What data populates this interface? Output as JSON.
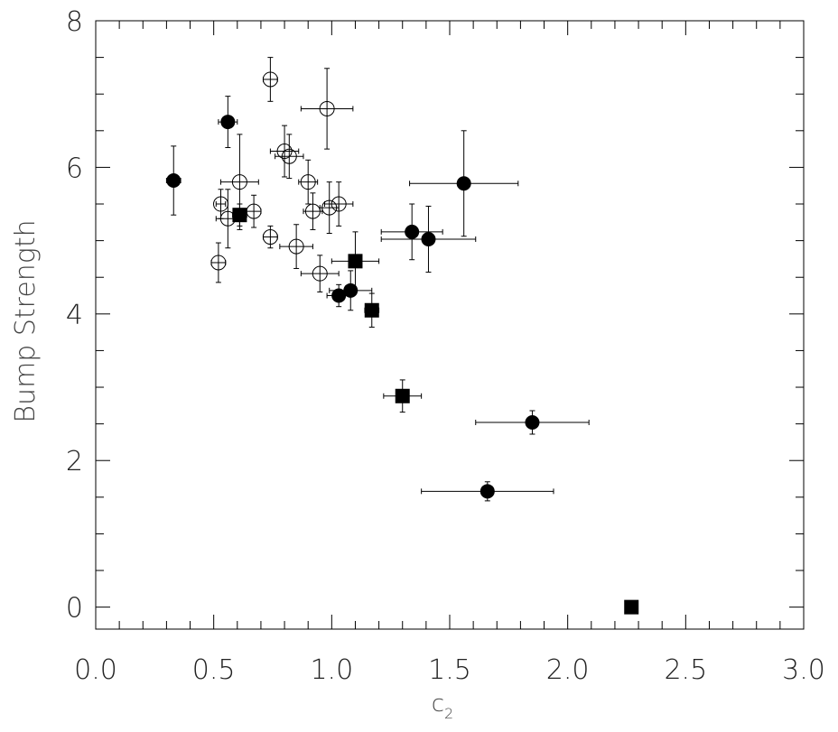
{
  "chart_data": {
    "type": "scatter",
    "title": "",
    "xlabel": "c",
    "xlabel_subscript": "2",
    "ylabel": "Bump Strength",
    "xlim": [
      0.0,
      3.0
    ],
    "ylim": [
      -0.3,
      8.0
    ],
    "x_ticks": [
      "0.0",
      "0.5",
      "1.0",
      "1.5",
      "2.0",
      "2.5",
      "3.0"
    ],
    "y_ticks": [
      "0",
      "2",
      "4",
      "6",
      "8"
    ],
    "grid": false,
    "legend": "none",
    "series": [
      {
        "marker": "open-circle",
        "points": [
          {
            "x": 0.74,
            "y": 7.2,
            "xerr": 0.03,
            "yerr": 0.3
          },
          {
            "x": 0.98,
            "y": 6.8,
            "xerr": 0.11,
            "yerr": 0.55
          },
          {
            "x": 0.8,
            "y": 6.22,
            "xerr": 0.06,
            "yerr": 0.35
          },
          {
            "x": 0.82,
            "y": 6.15,
            "xerr": 0.06,
            "yerr": 0.3
          },
          {
            "x": 0.61,
            "y": 5.8,
            "xerr": 0.08,
            "yerr": 0.65
          },
          {
            "x": 0.9,
            "y": 5.8,
            "xerr": 0.04,
            "yerr": 0.3
          },
          {
            "x": 0.53,
            "y": 5.5,
            "xerr": 0.02,
            "yerr": 0.2
          },
          {
            "x": 1.03,
            "y": 5.5,
            "xerr": 0.06,
            "yerr": 0.3
          },
          {
            "x": 0.92,
            "y": 5.4,
            "xerr": 0.04,
            "yerr": 0.25
          },
          {
            "x": 0.99,
            "y": 5.45,
            "xerr": 0.04,
            "yerr": 0.35
          },
          {
            "x": 0.67,
            "y": 5.4,
            "xerr": 0.03,
            "yerr": 0.22
          },
          {
            "x": 0.56,
            "y": 5.3,
            "xerr": 0.05,
            "yerr": 0.4
          },
          {
            "x": 0.74,
            "y": 5.05,
            "xerr": 0.03,
            "yerr": 0.15
          },
          {
            "x": 0.85,
            "y": 4.92,
            "xerr": 0.07,
            "yerr": 0.3
          },
          {
            "x": 0.52,
            "y": 4.7,
            "xerr": 0.03,
            "yerr": 0.27
          },
          {
            "x": 0.95,
            "y": 4.55,
            "xerr": 0.08,
            "yerr": 0.25
          }
        ]
      },
      {
        "marker": "filled-circle",
        "points": [
          {
            "x": 0.56,
            "y": 6.62,
            "xerr": 0.04,
            "yerr": 0.35
          },
          {
            "x": 0.33,
            "y": 5.82,
            "xerr": 0.03,
            "yerr": 0.47
          },
          {
            "x": 1.56,
            "y": 5.78,
            "xerr": 0.23,
            "yerr": 0.72
          },
          {
            "x": 1.34,
            "y": 5.12,
            "xerr": 0.13,
            "yerr": 0.38
          },
          {
            "x": 1.41,
            "y": 5.02,
            "xerr": 0.2,
            "yerr": 0.45
          },
          {
            "x": 1.08,
            "y": 4.32,
            "xerr": 0.09,
            "yerr": 0.27
          },
          {
            "x": 1.03,
            "y": 4.25,
            "xerr": 0.05,
            "yerr": 0.15
          },
          {
            "x": 1.85,
            "y": 2.52,
            "xerr": 0.24,
            "yerr": 0.16
          },
          {
            "x": 1.66,
            "y": 1.58,
            "xerr": 0.28,
            "yerr": 0.13
          }
        ]
      },
      {
        "marker": "filled-square",
        "points": [
          {
            "x": 0.61,
            "y": 5.35,
            "xerr": 0.03,
            "yerr": 0.15
          },
          {
            "x": 1.1,
            "y": 4.72,
            "xerr": 0.1,
            "yerr": 0.4
          },
          {
            "x": 1.17,
            "y": 4.05,
            "xerr": 0.03,
            "yerr": 0.23
          },
          {
            "x": 1.3,
            "y": 2.88,
            "xerr": 0.08,
            "yerr": 0.22
          },
          {
            "x": 2.27,
            "y": 0.0,
            "xerr": 0.0,
            "yerr": 0.0
          }
        ]
      }
    ]
  }
}
